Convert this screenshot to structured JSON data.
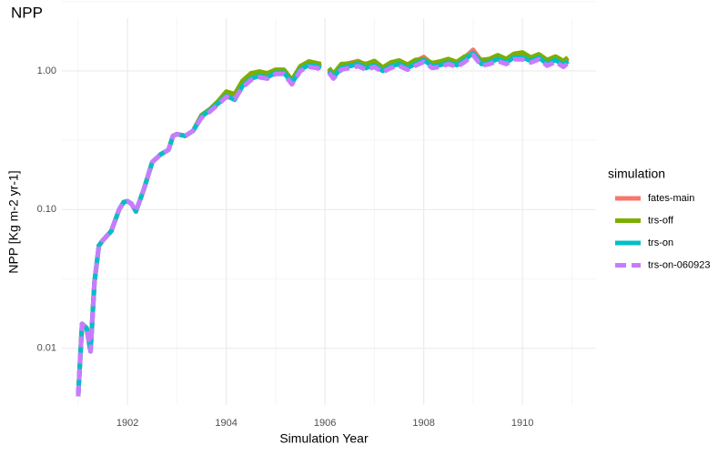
{
  "chart_data": {
    "type": "line",
    "title": "NPP",
    "x_label": "Simulation Year",
    "y_label": "NPP [Kg m-2 yr-1]",
    "legend_title": "simulation",
    "legend": "right",
    "grid": true,
    "log_y": true,
    "xlim": [
      1900.67,
      1911.49
    ],
    "ylim": [
      0.0039,
      2.4
    ],
    "xticks": [
      1902,
      1904,
      1906,
      1908,
      1910
    ],
    "yticks": [
      0.01,
      {
        "value": 0.1,
        "label": "0.10"
      },
      {
        "value": 1,
        "label": "1.00"
      }
    ],
    "x": [
      1901.0,
      1901.08,
      1901.17,
      1901.25,
      1901.33,
      1901.42,
      1901.5,
      1901.67,
      1901.83,
      1901.92,
      1902.0,
      1902.08,
      1902.17,
      1902.33,
      1902.5,
      1902.67,
      1902.83,
      1902.92,
      1903.0,
      1903.17,
      1903.33,
      1903.5,
      1903.67,
      1903.83,
      1904.0,
      1904.17,
      1904.33,
      1904.5,
      1904.67,
      1904.83,
      1905.0,
      1905.17,
      1905.33,
      1905.5,
      1905.67,
      1905.83,
      1905.92,
      1906.0,
      1906.08,
      1906.17,
      1906.33,
      1906.5,
      1906.67,
      1906.83,
      1907.0,
      1907.17,
      1907.33,
      1907.5,
      1907.67,
      1907.83,
      1908.0,
      1908.17,
      1908.33,
      1908.5,
      1908.67,
      1908.83,
      1909.0,
      1909.17,
      1909.33,
      1909.5,
      1909.67,
      1909.83,
      1910.0,
      1910.17,
      1910.33,
      1910.5,
      1910.67,
      1910.83,
      1910.92
    ],
    "series": [
      {
        "name": "fates-main",
        "color": "#F8766D",
        "values": [
          0.0045,
          0.015,
          0.014,
          0.0095,
          0.03,
          0.055,
          0.06,
          0.07,
          0.1,
          0.113,
          0.115,
          0.11,
          0.097,
          0.14,
          0.22,
          0.25,
          0.27,
          0.34,
          0.35,
          0.34,
          0.37,
          0.48,
          0.53,
          0.6,
          0.7,
          0.67,
          0.82,
          0.93,
          0.96,
          0.94,
          1.0,
          1.0,
          0.85,
          1.06,
          1.14,
          1.12,
          1.08,
          null,
          1.03,
          0.93,
          1.1,
          1.14,
          1.18,
          1.1,
          1.15,
          1.04,
          1.12,
          1.17,
          1.09,
          1.17,
          1.26,
          1.12,
          1.14,
          1.2,
          1.14,
          1.25,
          1.42,
          1.17,
          1.2,
          1.28,
          1.2,
          1.3,
          1.3,
          1.23,
          1.3,
          1.17,
          1.25,
          1.15,
          1.22
        ]
      },
      {
        "name": "trs-off",
        "color": "#7CAE00",
        "values": [
          0.0045,
          0.015,
          0.014,
          0.0095,
          0.03,
          0.055,
          0.06,
          0.07,
          0.1,
          0.113,
          0.115,
          0.11,
          0.097,
          0.14,
          0.22,
          0.25,
          0.27,
          0.34,
          0.35,
          0.34,
          0.37,
          0.48,
          0.53,
          0.6,
          0.71,
          0.68,
          0.85,
          0.96,
          0.99,
          0.96,
          1.02,
          1.02,
          0.86,
          1.08,
          1.17,
          1.14,
          1.12,
          null,
          1.05,
          0.95,
          1.12,
          1.13,
          1.16,
          1.12,
          1.18,
          1.06,
          1.15,
          1.19,
          1.11,
          1.2,
          1.22,
          1.14,
          1.17,
          1.22,
          1.16,
          1.27,
          1.32,
          1.2,
          1.22,
          1.3,
          1.22,
          1.33,
          1.36,
          1.25,
          1.32,
          1.2,
          1.27,
          1.18,
          1.25
        ]
      },
      {
        "name": "trs-on",
        "color": "#00BFC4",
        "values": [
          0.0045,
          0.015,
          0.014,
          0.0095,
          0.03,
          0.055,
          0.06,
          0.07,
          0.1,
          0.113,
          0.115,
          0.11,
          0.097,
          0.14,
          0.22,
          0.25,
          0.27,
          0.34,
          0.35,
          0.34,
          0.37,
          0.47,
          0.52,
          0.58,
          0.66,
          0.62,
          0.78,
          0.88,
          0.92,
          0.9,
          0.97,
          0.97,
          0.82,
          1.02,
          1.1,
          1.08,
          1.05,
          null,
          1.0,
          0.9,
          1.05,
          1.08,
          1.12,
          1.05,
          1.1,
          1.0,
          1.08,
          1.12,
          1.05,
          1.12,
          1.2,
          1.08,
          1.1,
          1.15,
          1.1,
          1.2,
          1.35,
          1.12,
          1.15,
          1.22,
          1.15,
          1.25,
          1.25,
          1.18,
          1.25,
          1.12,
          1.2,
          1.1,
          1.18
        ]
      },
      {
        "name": "trs-on-060923",
        "color": "#C77CFF",
        "linestyle": "dashed",
        "values": [
          0.0045,
          0.015,
          0.014,
          0.0095,
          0.03,
          0.055,
          0.06,
          0.07,
          0.1,
          0.113,
          0.115,
          0.11,
          0.097,
          0.14,
          0.22,
          0.25,
          0.27,
          0.34,
          0.35,
          0.34,
          0.37,
          0.46,
          0.51,
          0.57,
          0.65,
          0.63,
          0.76,
          0.86,
          0.9,
          0.88,
          0.95,
          0.95,
          0.8,
          1.0,
          1.07,
          1.05,
          1.02,
          null,
          0.97,
          0.88,
          1.02,
          1.05,
          1.08,
          1.02,
          1.07,
          0.98,
          1.05,
          1.09,
          1.02,
          1.09,
          1.16,
          1.05,
          1.07,
          1.12,
          1.07,
          1.16,
          1.3,
          1.09,
          1.12,
          1.18,
          1.12,
          1.21,
          1.21,
          1.15,
          1.21,
          1.09,
          1.16,
          1.07,
          1.14
        ]
      }
    ]
  }
}
